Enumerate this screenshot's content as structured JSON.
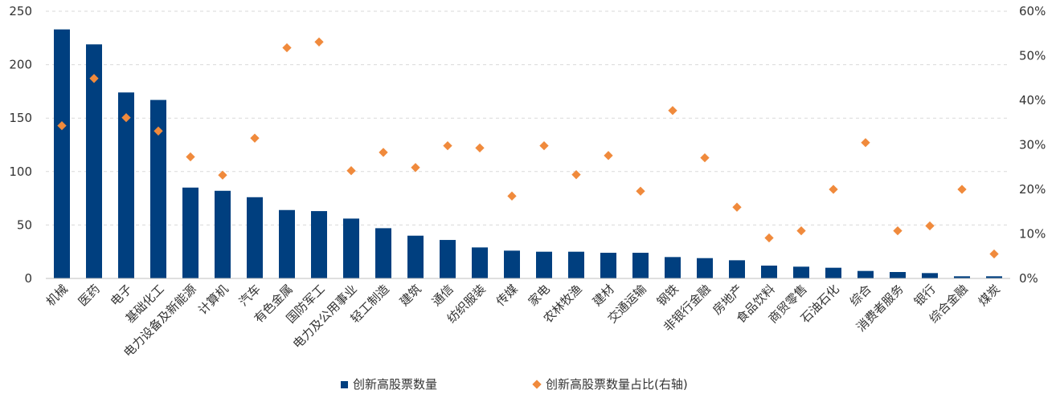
{
  "chart_data": {
    "type": "bar",
    "categories": [
      "机械",
      "医药",
      "电子",
      "基础化工",
      "电力设备及新能源",
      "计算机",
      "汽车",
      "有色金属",
      "国防军工",
      "电力及公用事业",
      "轻工制造",
      "建筑",
      "通信",
      "纺织服装",
      "传媒",
      "家电",
      "农林牧渔",
      "建材",
      "交通运输",
      "钢铁",
      "非银行金融",
      "房地产",
      "食品饮料",
      "商贸零售",
      "石油石化",
      "综合",
      "消费者服务",
      "银行",
      "综合金融",
      "煤炭"
    ],
    "series": [
      {
        "name": "创新高股票数量",
        "type": "bar",
        "axis": "left",
        "color": "#003f7f",
        "values": [
          233,
          219,
          174,
          167,
          85,
          82,
          76,
          64,
          63,
          56,
          47,
          40,
          36,
          29,
          26,
          25,
          25,
          24,
          24,
          20,
          19,
          17,
          12,
          11,
          10,
          7,
          6,
          5,
          2,
          2
        ]
      },
      {
        "name": "创新高股票数量占比(右轴)",
        "type": "scatter",
        "axis": "right",
        "color": "#f08a3c",
        "values": [
          34.3,
          44.9,
          36.1,
          33.1,
          27.3,
          23.2,
          31.5,
          51.8,
          53.1,
          24.2,
          28.3,
          24.9,
          29.8,
          29.3,
          18.5,
          29.8,
          23.3,
          27.6,
          19.6,
          37.7,
          27.1,
          16.0,
          9.1,
          10.7,
          20.0,
          30.5,
          10.7,
          11.8,
          20.0,
          5.5
        ]
      }
    ],
    "y_left": {
      "ylim": [
        0,
        250
      ],
      "ticks": [
        0,
        50,
        100,
        150,
        200,
        250
      ]
    },
    "y_right": {
      "ylim": [
        0,
        60
      ],
      "ticks": [
        "0%",
        "10%",
        "20%",
        "30%",
        "40%",
        "50%",
        "60%"
      ]
    },
    "grid": true,
    "legend_position": "bottom"
  }
}
